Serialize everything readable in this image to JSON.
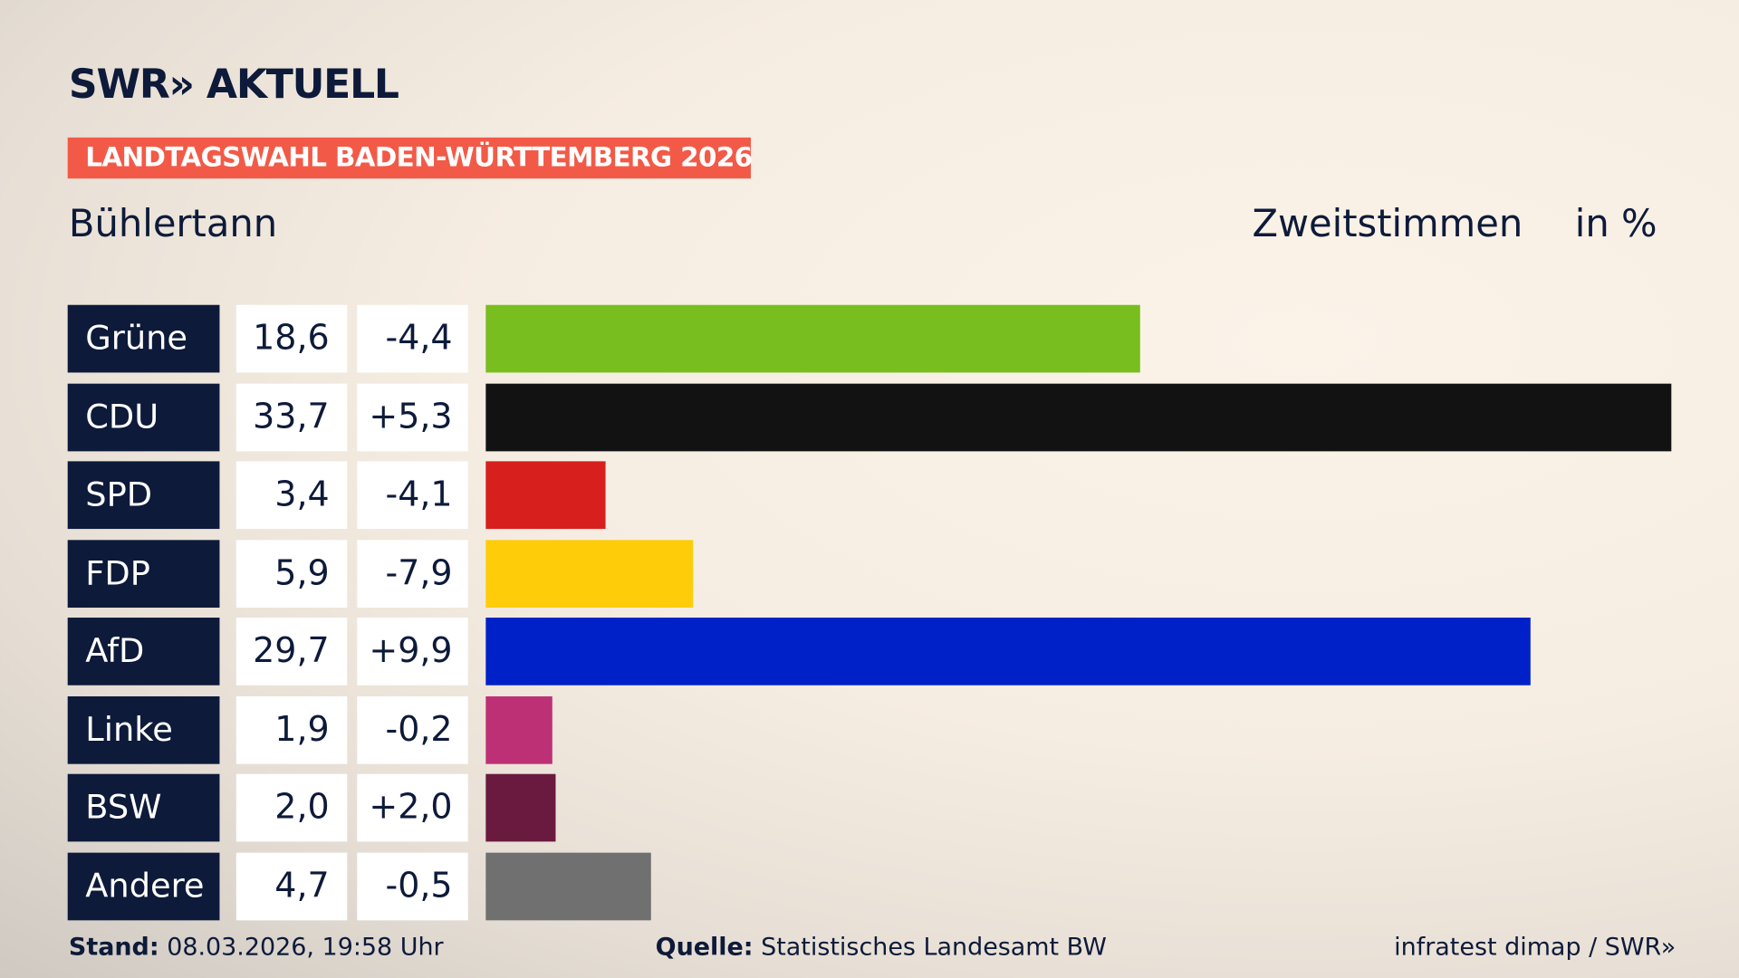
{
  "header": {
    "logo": "SWR» AKTUELL",
    "banner": "LANDTAGSWAHL BADEN-WÜRTTEMBERG 2026",
    "banner_color": "#f25a47",
    "place": "Bühlertann",
    "metric": "Zweitstimmen",
    "unit": "in %"
  },
  "chart_data": {
    "type": "bar",
    "orientation": "horizontal",
    "categories": [
      "Grüne",
      "CDU",
      "SPD",
      "FDP",
      "AfD",
      "Linke",
      "BSW",
      "Andere"
    ],
    "values": [
      18.6,
      33.7,
      3.4,
      5.9,
      29.7,
      1.9,
      2.0,
      4.7
    ],
    "value_labels": [
      "18,6",
      "33,7",
      "3,4",
      "5,9",
      "29,7",
      "1,9",
      "2,0",
      "4,7"
    ],
    "diff_labels": [
      "-4,4",
      "+5,3",
      "-4,1",
      "-7,9",
      "+9,9",
      "-0,2",
      "+2,0",
      "-0,5"
    ],
    "colors": [
      "#78be1e",
      "#121212",
      "#d71f1d",
      "#ffcc0a",
      "#0021c8",
      "#be3075",
      "#6b1a3f",
      "#707070"
    ],
    "xlim": [
      0,
      33.7
    ]
  },
  "footer": {
    "stand_label": "Stand:",
    "stand_value": "08.03.2026, 19:58 Uhr",
    "source_label": "Quelle:",
    "source_value": "Statistisches Landesamt BW",
    "credit": "infratest dimap / SWR»"
  }
}
